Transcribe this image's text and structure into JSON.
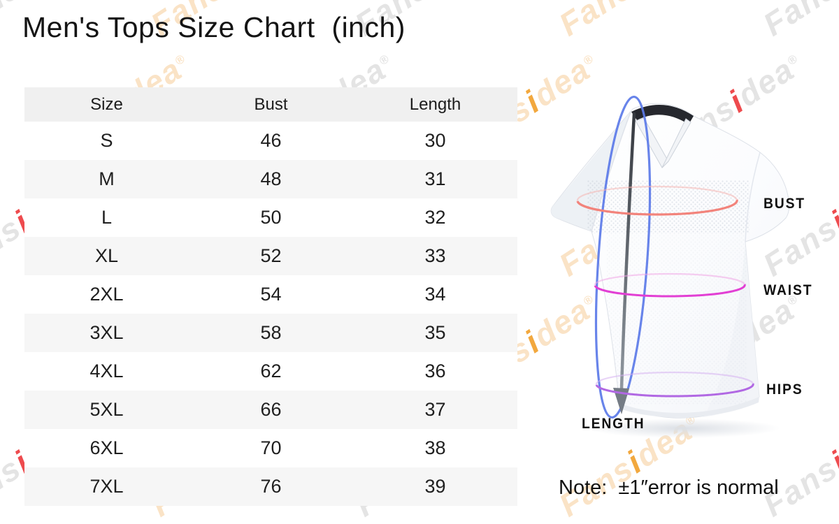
{
  "title": "Men's Tops Size Chart  (inch)",
  "note": "Note:  ±1″error is normal",
  "table": {
    "headers": [
      "Size",
      "Bust",
      "Length"
    ],
    "rows": [
      [
        "S",
        "46",
        "30"
      ],
      [
        "M",
        "48",
        "31"
      ],
      [
        "L",
        "50",
        "32"
      ],
      [
        "XL",
        "52",
        "33"
      ],
      [
        "2XL",
        "54",
        "34"
      ],
      [
        "3XL",
        "58",
        "35"
      ],
      [
        "4XL",
        "62",
        "36"
      ],
      [
        "5XL",
        "66",
        "37"
      ],
      [
        "6XL",
        "70",
        "38"
      ],
      [
        "7XL",
        "76",
        "39"
      ]
    ]
  },
  "chart_data": {
    "type": "table",
    "title": "Men's Tops Size Chart (inch)",
    "columns": [
      "Size",
      "Bust",
      "Length"
    ],
    "rows": [
      {
        "size": "S",
        "bust": 46,
        "length": 30
      },
      {
        "size": "M",
        "bust": 48,
        "length": 31
      },
      {
        "size": "L",
        "bust": 50,
        "length": 32
      },
      {
        "size": "XL",
        "bust": 52,
        "length": 33
      },
      {
        "size": "2XL",
        "bust": 54,
        "length": 34
      },
      {
        "size": "3XL",
        "bust": 58,
        "length": 35
      },
      {
        "size": "4XL",
        "bust": 62,
        "length": 36
      },
      {
        "size": "5XL",
        "bust": 66,
        "length": 37
      },
      {
        "size": "6XL",
        "bust": 70,
        "length": 38
      },
      {
        "size": "7XL",
        "bust": 76,
        "length": 39
      }
    ],
    "note": "±1″ error is normal",
    "unit": "inch"
  },
  "diagram": {
    "labels": {
      "bust": "BUST",
      "waist": "WAIST",
      "hips": "HIPS",
      "length": "LENGTH"
    },
    "colors": {
      "bust_line": "#f2837b",
      "bust_line_back": "#f5b5b0",
      "waist_line": "#e23fd4",
      "waist_line_back": "#f0a6e6",
      "hips_line": "#b168e3",
      "hips_line_back": "#d5b0f0",
      "vertical_loop": "#5b79e8",
      "arrowhead": "#757c85",
      "collar": "#26282e"
    }
  },
  "watermark": {
    "text_parts": [
      "Fans",
      "i",
      "dea"
    ],
    "reg_mark": "®",
    "colors": {
      "gray": "#e4e4e4",
      "orange": "#fae3c6",
      "red_i": "#ee4b4e",
      "orange_i": "#f2a câblage"
    }
  }
}
